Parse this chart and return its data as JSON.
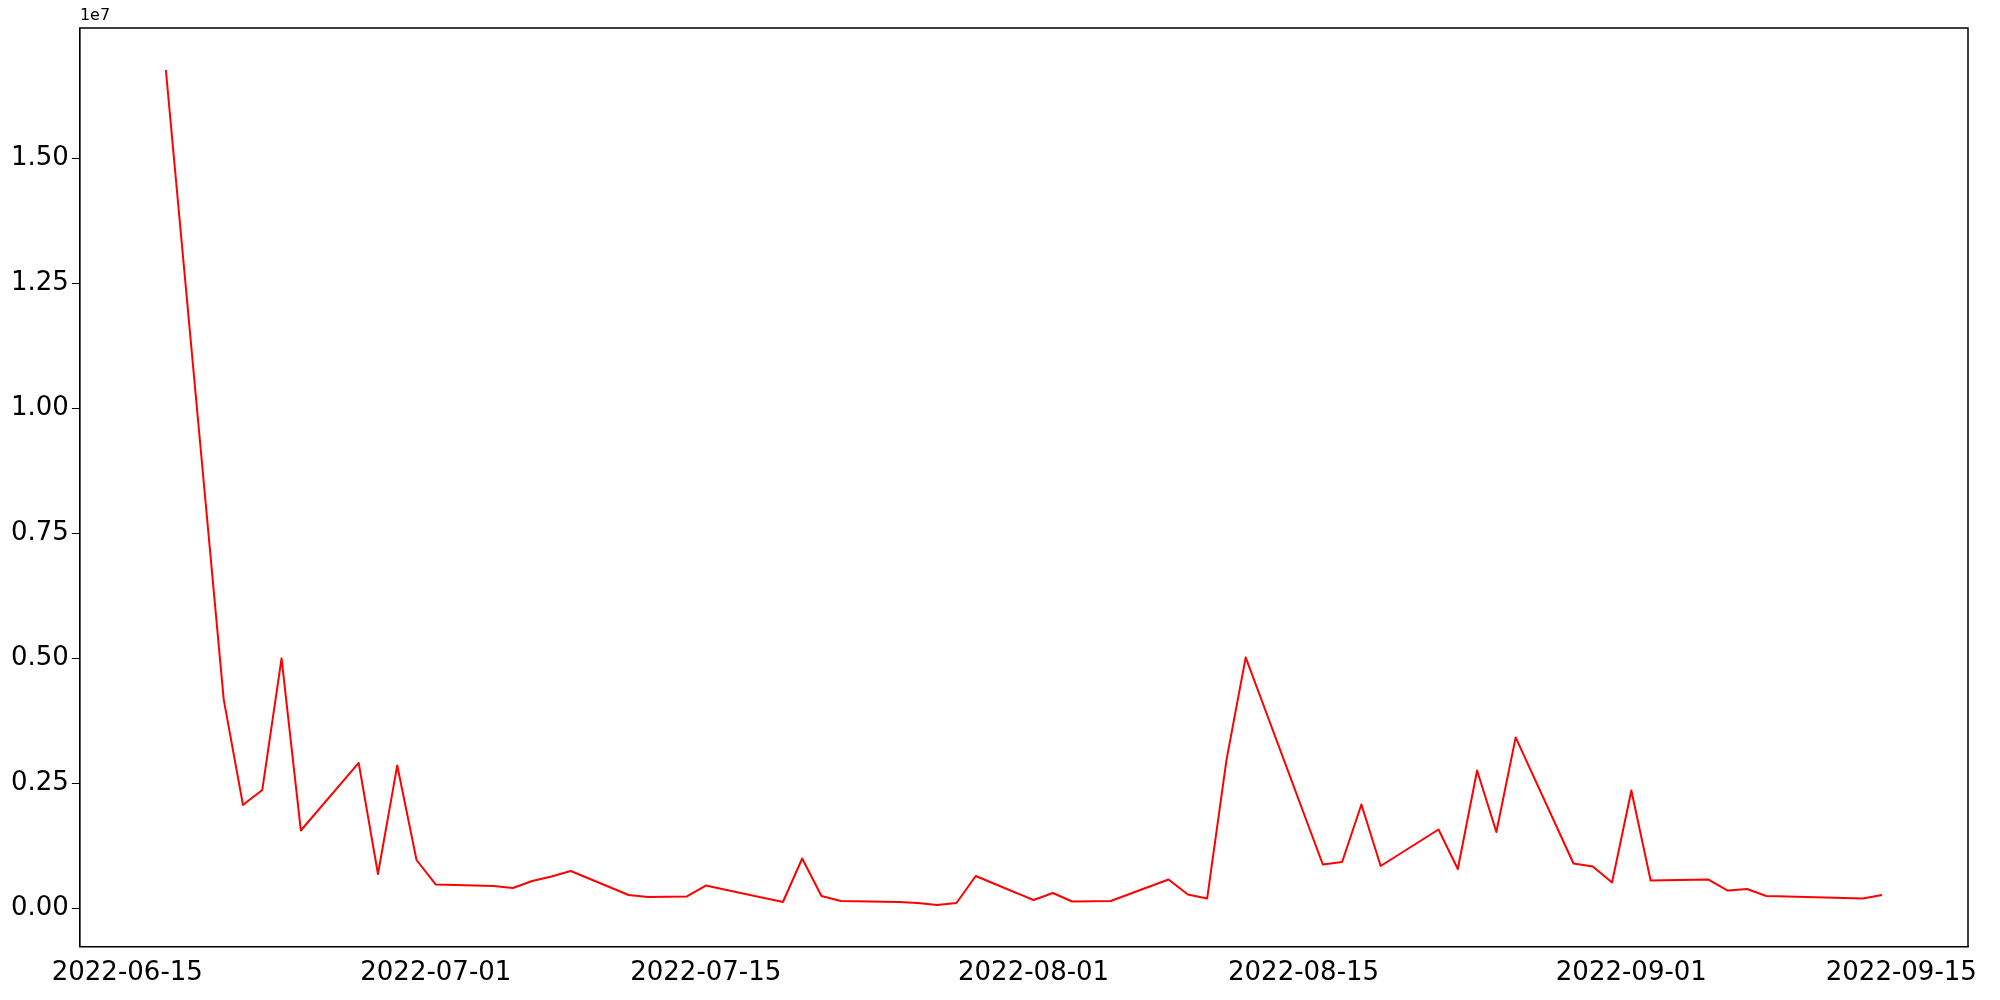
{
  "chart_data": {
    "type": "line",
    "x": [
      "2022-06-17",
      "2022-06-20",
      "2022-06-21",
      "2022-06-22",
      "2022-06-23",
      "2022-06-24",
      "2022-06-27",
      "2022-06-28",
      "2022-06-29",
      "2022-06-30",
      "2022-07-01",
      "2022-07-04",
      "2022-07-05",
      "2022-07-06",
      "2022-07-07",
      "2022-07-08",
      "2022-07-11",
      "2022-07-12",
      "2022-07-14",
      "2022-07-15",
      "2022-07-19",
      "2022-07-20",
      "2022-07-21",
      "2022-07-22",
      "2022-07-25",
      "2022-07-26",
      "2022-07-27",
      "2022-07-28",
      "2022-07-29",
      "2022-08-01",
      "2022-08-02",
      "2022-08-03",
      "2022-08-05",
      "2022-08-08",
      "2022-08-09",
      "2022-08-10",
      "2022-08-11",
      "2022-08-12",
      "2022-08-16",
      "2022-08-17",
      "2022-08-18",
      "2022-08-19",
      "2022-08-22",
      "2022-08-23",
      "2022-08-24",
      "2022-08-25",
      "2022-08-26",
      "2022-08-29",
      "2022-08-30",
      "2022-08-31",
      "2022-09-01",
      "2022-09-02",
      "2022-09-05",
      "2022-09-06",
      "2022-09-07",
      "2022-09-08",
      "2022-09-13",
      "2022-09-14"
    ],
    "series": [
      {
        "color": "#ff0000",
        "values": [
          1.676,
          0.418,
          0.207,
          0.237,
          0.5,
          0.156,
          0.291,
          0.069,
          0.286,
          0.097,
          0.048,
          0.045,
          0.041,
          0.055,
          0.064,
          0.075,
          0.027,
          0.023,
          0.024,
          0.046,
          0.013,
          0.1,
          0.025,
          0.015,
          0.013,
          0.011,
          0.007,
          0.011,
          0.065,
          0.017,
          0.031,
          0.014,
          0.015,
          0.058,
          0.028,
          0.02,
          0.296,
          0.502,
          0.088,
          0.093,
          0.208,
          0.085,
          0.158,
          0.079,
          0.276,
          0.153,
          0.342,
          0.09,
          0.084,
          0.052,
          0.236,
          0.056,
          0.058,
          0.036,
          0.039,
          0.025,
          0.02,
          0.027
        ]
      }
    ],
    "xlim": [
      "2022-06-12T13:00",
      "2022-09-18T11:00"
    ],
    "xticks": [
      "2022-06-15",
      "2022-07-01",
      "2022-07-15",
      "2022-08-01",
      "2022-08-15",
      "2022-09-01",
      "2022-09-15"
    ],
    "ylim": [
      -0.0765,
      1.76
    ],
    "yticks": [
      {
        "value": 0,
        "label": "0.00"
      },
      {
        "value": 0.25,
        "label": "0.25"
      },
      {
        "value": 0.5,
        "label": "0.50"
      },
      {
        "value": 0.75,
        "label": "0.75"
      },
      {
        "value": 1,
        "label": "1.00"
      },
      {
        "value": 1.25,
        "label": "1.25"
      },
      {
        "value": 1.5,
        "label": "1.50"
      }
    ],
    "annotations": [
      "1e7"
    ],
    "line_style": "solid",
    "marker": "none",
    "legend": false
  }
}
